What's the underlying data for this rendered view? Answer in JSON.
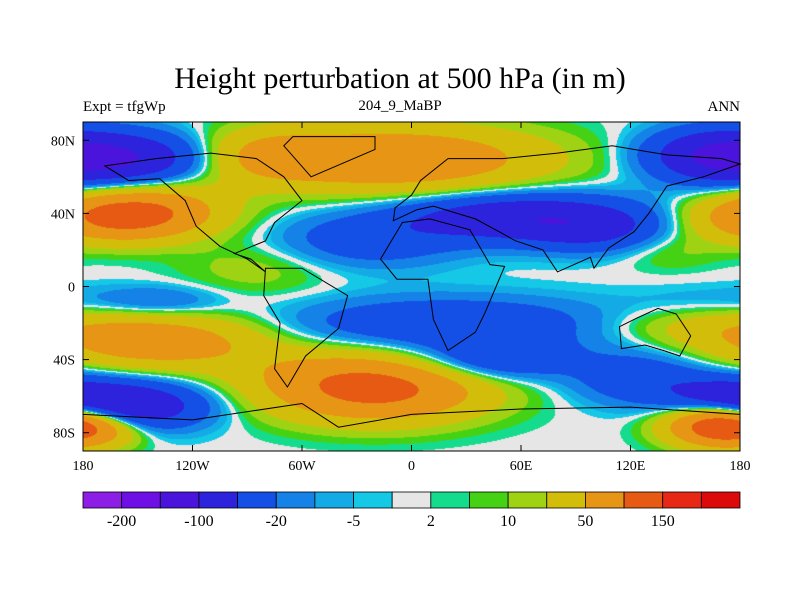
{
  "chart_data": {
    "type": "heatmap",
    "title": "Height perturbation at 500 hPa (in m)",
    "subtitle_left": "Expt = tfgWp",
    "subtitle_center": "204_9_MaBP",
    "subtitle_right": "ANN",
    "x_ticks": [
      "180",
      "120W",
      "60W",
      "0",
      "60E",
      "120E",
      "180"
    ],
    "y_ticks": [
      "80N",
      "40N",
      "0",
      "40S",
      "80S"
    ],
    "xlim": [
      -180,
      180
    ],
    "ylim": [
      -90,
      90
    ],
    "levels": [
      -200,
      -150,
      -100,
      -50,
      -20,
      -10,
      -5,
      -2,
      2,
      5,
      10,
      20,
      50,
      100,
      150,
      200
    ],
    "colorbar_labels": [
      "-200",
      "-100",
      "-20",
      "-5",
      "2",
      "10",
      "50",
      "150"
    ],
    "colors": [
      "#8c1ee6",
      "#6e0fe6",
      "#4b14dc",
      "#2d23dc",
      "#1450e6",
      "#1482e6",
      "#14aae6",
      "#14c8e6",
      "#e6e6e6",
      "#14dc8c",
      "#46d214",
      "#a0d214",
      "#d2be0a",
      "#e69614",
      "#e65a14",
      "#e62814",
      "#dc0a0a"
    ]
  }
}
